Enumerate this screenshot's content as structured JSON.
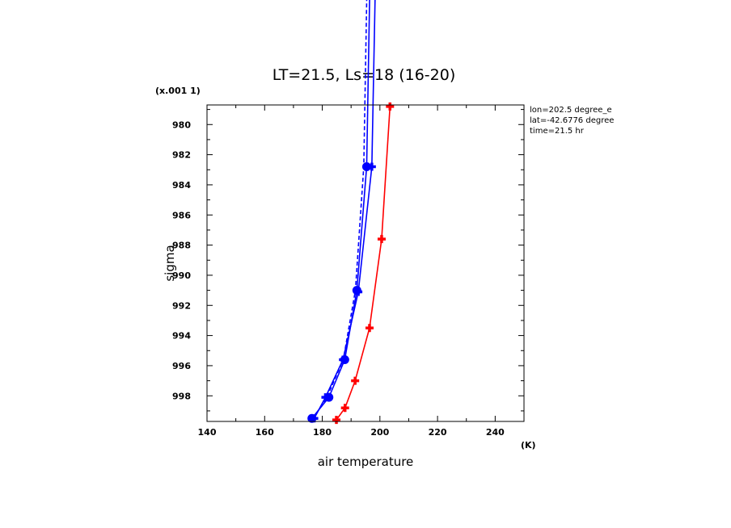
{
  "chart_data": {
    "type": "line",
    "title": "LT=21.5, Ls=18 (16-20)",
    "xlabel": "air temperature",
    "ylabel": "sigma",
    "x_unit": "(K)",
    "y_scale_note": "(x.001 1)",
    "xlim": [
      140,
      250
    ],
    "ylim": [
      978.7,
      999.7
    ],
    "y_inverted": true,
    "x_ticks": [
      "140",
      "160",
      "180",
      "200",
      "220",
      "240"
    ],
    "y_ticks": [
      "980",
      "982",
      "984",
      "986",
      "988",
      "990",
      "992",
      "994",
      "996",
      "998"
    ],
    "grid": false,
    "annotations": [
      "lon=202.5 degree_e",
      "lat=-42.6776 degree",
      "time=21.5 hr"
    ],
    "series": [
      {
        "color": "#ff0000",
        "style": "solid",
        "marker": "cross",
        "points": [
          [
            184.9,
            999.6
          ],
          [
            187.9,
            998.8
          ],
          [
            191.4,
            997.0
          ],
          [
            196.4,
            993.5
          ],
          [
            200.6,
            987.6
          ],
          [
            203.5,
            978.8
          ]
        ]
      },
      {
        "color": "#0000ff",
        "style": "solid",
        "marker": "dot",
        "points": [
          [
            176.4,
            999.5
          ],
          [
            182.3,
            998.1
          ],
          [
            187.8,
            995.6
          ],
          [
            192.0,
            991.0
          ],
          [
            195.4,
            982.8
          ],
          [
            197.5,
            960.0
          ]
        ]
      },
      {
        "color": "#0000ff",
        "style": "solid",
        "marker": "cross",
        "points": [
          [
            177.2,
            999.5
          ],
          [
            181.1,
            998.1
          ],
          [
            187.2,
            995.6
          ],
          [
            192.5,
            991.1
          ],
          [
            197.2,
            982.8
          ],
          [
            199.5,
            960.0
          ]
        ]
      },
      {
        "color": "#0000ff",
        "style": "dashed",
        "marker": "none",
        "points": [
          [
            176.8,
            999.5
          ],
          [
            181.6,
            998.1
          ],
          [
            187.3,
            995.6
          ],
          [
            191.5,
            991.0
          ],
          [
            194.4,
            982.8
          ],
          [
            196.5,
            960.0
          ]
        ]
      }
    ]
  }
}
